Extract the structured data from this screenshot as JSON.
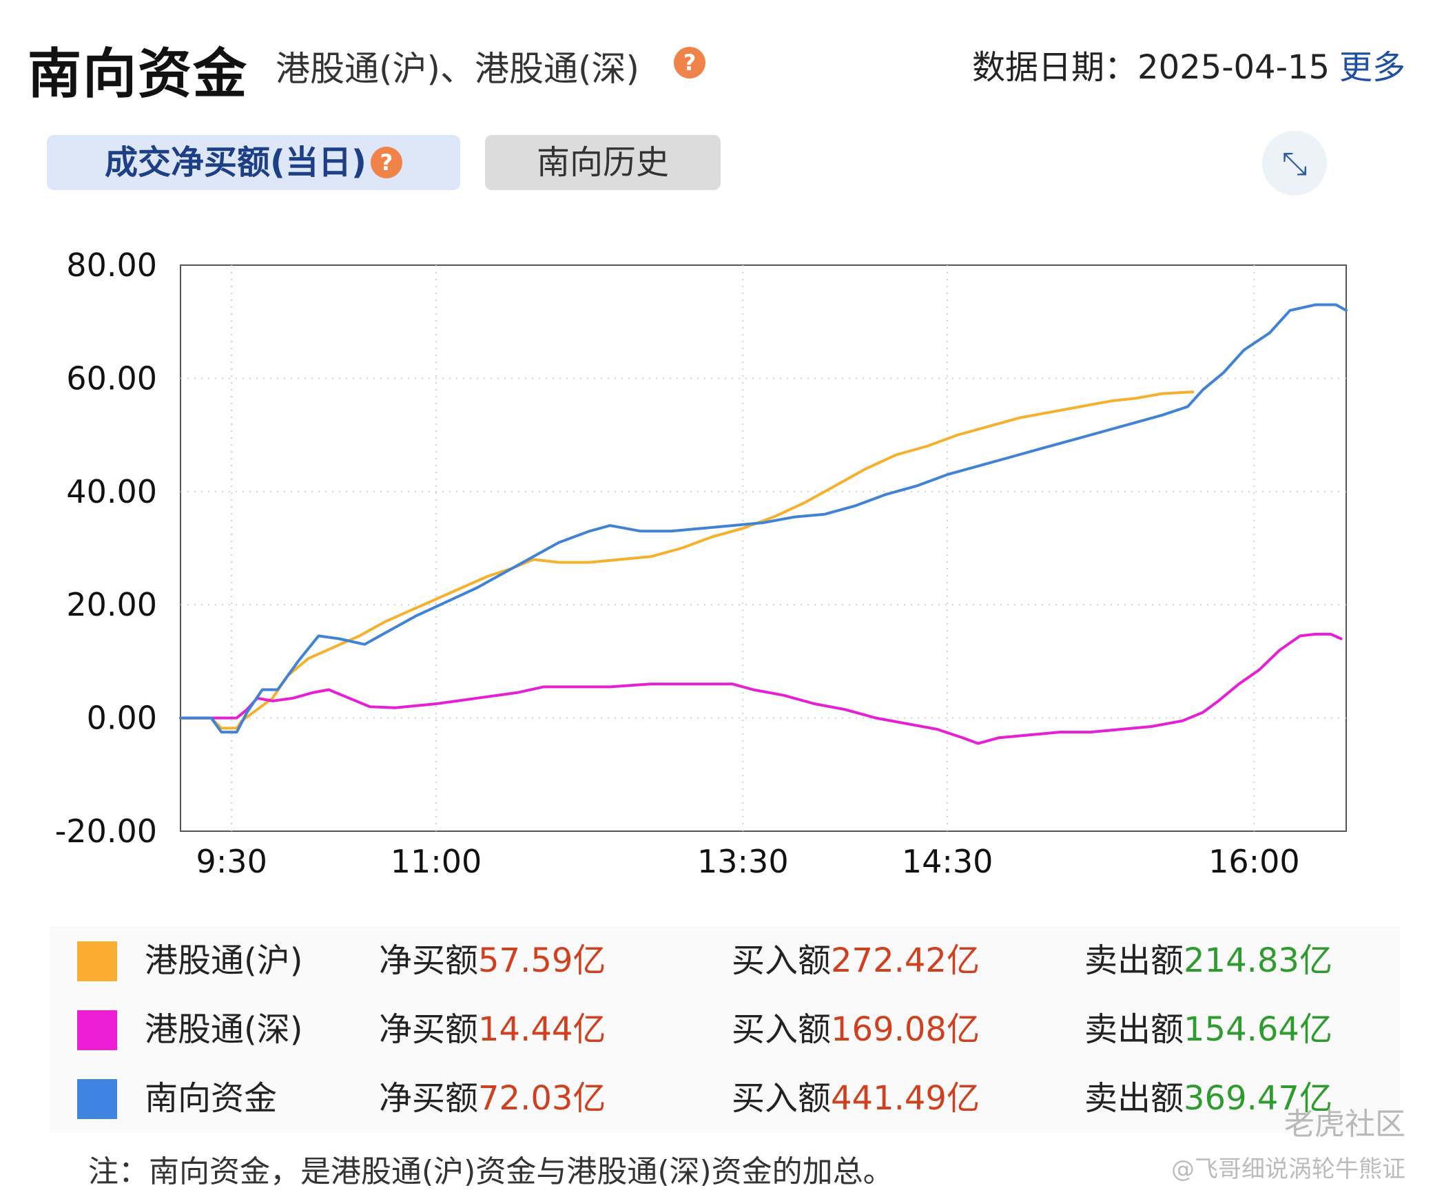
{
  "header": {
    "title": "南向资金",
    "subtitle": "港股通(沪)、港股通(深)",
    "date_label": "数据日期：",
    "date": "2025-04-15",
    "more": "更多"
  },
  "tabs": {
    "active": "成交净买额(当日)",
    "inactive": "南向历史"
  },
  "chart_data": {
    "type": "line",
    "x_ticks": [
      "9:30",
      "11:00",
      "13:30",
      "14:30",
      "16:00"
    ],
    "y_ticks": [
      "80.00",
      "60.00",
      "40.00",
      "20.00",
      "0.00",
      "-20.00"
    ],
    "ylim": [
      -20,
      80
    ],
    "grid": true,
    "series": [
      {
        "name": "港股通(沪)",
        "color": "#f5b12e",
        "points": [
          [
            9.0,
            0
          ],
          [
            9.25,
            0
          ],
          [
            9.3,
            0
          ],
          [
            9.4,
            -1.8
          ],
          [
            9.55,
            -1.8
          ],
          [
            9.6,
            -0.5
          ],
          [
            9.75,
            1.5
          ],
          [
            9.9,
            3.5
          ],
          [
            10.05,
            7.5
          ],
          [
            10.25,
            10.5
          ],
          [
            10.5,
            12.5
          ],
          [
            10.75,
            14.5
          ],
          [
            11.0,
            17
          ],
          [
            11.25,
            19
          ],
          [
            11.5,
            21
          ],
          [
            11.75,
            23
          ],
          [
            12.0,
            25
          ],
          [
            12.25,
            26.5
          ],
          [
            12.45,
            28
          ],
          [
            12.7,
            27.5
          ],
          [
            13.0,
            27.5
          ],
          [
            13.3,
            28
          ],
          [
            13.6,
            28.5
          ],
          [
            13.9,
            30
          ],
          [
            14.2,
            32
          ],
          [
            14.5,
            33.5
          ],
          [
            14.8,
            35.5
          ],
          [
            15.1,
            38
          ],
          [
            15.4,
            41
          ],
          [
            15.7,
            44
          ],
          [
            16.0,
            46.5
          ],
          [
            16.3,
            48
          ],
          [
            16.6,
            50
          ],
          [
            16.9,
            51.5
          ],
          [
            17.2,
            53
          ],
          [
            17.5,
            54
          ],
          [
            17.8,
            55
          ],
          [
            18.1,
            56
          ],
          [
            18.35,
            56.5
          ],
          [
            18.6,
            57.3
          ],
          [
            18.8,
            57.5
          ],
          [
            18.9,
            57.6
          ]
        ]
      },
      {
        "name": "港股通(深)",
        "color": "#e61fd4",
        "points": [
          [
            9.0,
            0
          ],
          [
            9.5,
            0
          ],
          [
            9.55,
            0
          ],
          [
            9.65,
            1.5
          ],
          [
            9.75,
            3.5
          ],
          [
            9.9,
            3
          ],
          [
            10.1,
            3.5
          ],
          [
            10.3,
            4.5
          ],
          [
            10.45,
            5
          ],
          [
            10.65,
            3.5
          ],
          [
            10.85,
            2
          ],
          [
            11.1,
            1.8
          ],
          [
            11.5,
            2.5
          ],
          [
            11.9,
            3.5
          ],
          [
            12.3,
            4.5
          ],
          [
            12.55,
            5.5
          ],
          [
            12.8,
            5.5
          ],
          [
            13.2,
            5.5
          ],
          [
            13.6,
            6
          ],
          [
            14.0,
            6
          ],
          [
            14.4,
            6
          ],
          [
            14.6,
            5
          ],
          [
            14.9,
            4
          ],
          [
            15.2,
            2.5
          ],
          [
            15.5,
            1.5
          ],
          [
            15.8,
            0
          ],
          [
            16.1,
            -1
          ],
          [
            16.4,
            -2
          ],
          [
            16.65,
            -3.5
          ],
          [
            16.8,
            -4.5
          ],
          [
            17.0,
            -3.5
          ],
          [
            17.3,
            -3
          ],
          [
            17.6,
            -2.5
          ],
          [
            17.9,
            -2.5
          ],
          [
            18.2,
            -2
          ],
          [
            18.5,
            -1.5
          ],
          [
            18.8,
            -0.5
          ],
          [
            19.0,
            1
          ],
          [
            19.15,
            3
          ],
          [
            19.35,
            6
          ],
          [
            19.55,
            8.5
          ],
          [
            19.75,
            12
          ],
          [
            19.95,
            14.5
          ],
          [
            20.1,
            14.8
          ],
          [
            20.25,
            14.8
          ],
          [
            20.35,
            14
          ]
        ]
      },
      {
        "name": "南向资金",
        "color": "#3f82d6",
        "points": [
          [
            9.0,
            0
          ],
          [
            9.25,
            0
          ],
          [
            9.3,
            0
          ],
          [
            9.4,
            -2.5
          ],
          [
            9.55,
            -2.5
          ],
          [
            9.65,
            1
          ],
          [
            9.8,
            5
          ],
          [
            9.95,
            5
          ],
          [
            10.15,
            10
          ],
          [
            10.35,
            14.5
          ],
          [
            10.55,
            14
          ],
          [
            10.8,
            13
          ],
          [
            11.0,
            15
          ],
          [
            11.3,
            18
          ],
          [
            11.6,
            20.5
          ],
          [
            11.9,
            23
          ],
          [
            12.2,
            26
          ],
          [
            12.45,
            28.5
          ],
          [
            12.7,
            31
          ],
          [
            13.0,
            33
          ],
          [
            13.2,
            34
          ],
          [
            13.5,
            33
          ],
          [
            13.8,
            33
          ],
          [
            14.1,
            33.5
          ],
          [
            14.4,
            34
          ],
          [
            14.7,
            34.5
          ],
          [
            15.0,
            35.5
          ],
          [
            15.3,
            36
          ],
          [
            15.6,
            37.5
          ],
          [
            15.9,
            39.5
          ],
          [
            16.2,
            41
          ],
          [
            16.5,
            43
          ],
          [
            16.8,
            44.5
          ],
          [
            17.1,
            46
          ],
          [
            17.4,
            47.5
          ],
          [
            17.7,
            49
          ],
          [
            18.0,
            50.5
          ],
          [
            18.3,
            52
          ],
          [
            18.6,
            53.5
          ],
          [
            18.85,
            55
          ],
          [
            19.0,
            58
          ],
          [
            19.2,
            61
          ],
          [
            19.4,
            65
          ],
          [
            19.65,
            68
          ],
          [
            19.85,
            72
          ],
          [
            20.1,
            73
          ],
          [
            20.3,
            73
          ],
          [
            20.4,
            72
          ]
        ]
      }
    ]
  },
  "legend": {
    "rows": [
      {
        "name": "港股通(沪)",
        "color": "#f9ae33",
        "net_label": "净买额",
        "net": "57.59亿",
        "buy_label": "买入额",
        "buy": "272.42亿",
        "sell_label": "卖出额",
        "sell": "214.83亿"
      },
      {
        "name": "港股通(深)",
        "color": "#ed1fd6",
        "net_label": "净买额",
        "net": "14.44亿",
        "buy_label": "买入额",
        "buy": "169.08亿",
        "sell_label": "卖出额",
        "sell": "154.64亿"
      },
      {
        "name": "南向资金",
        "color": "#3f84e0",
        "net_label": "净买额",
        "net": "72.03亿",
        "buy_label": "买入额",
        "buy": "441.49亿",
        "sell_label": "卖出额",
        "sell": "369.47亿"
      }
    ]
  },
  "note": "注：南向资金，是港股通(沪)资金与港股通(深)资金的加总。",
  "watermark": "老虎社区",
  "credit": "@飞哥细说涡轮牛熊证",
  "icons": {
    "help": "question-mark-icon",
    "expand": "expand-arrows-icon"
  }
}
